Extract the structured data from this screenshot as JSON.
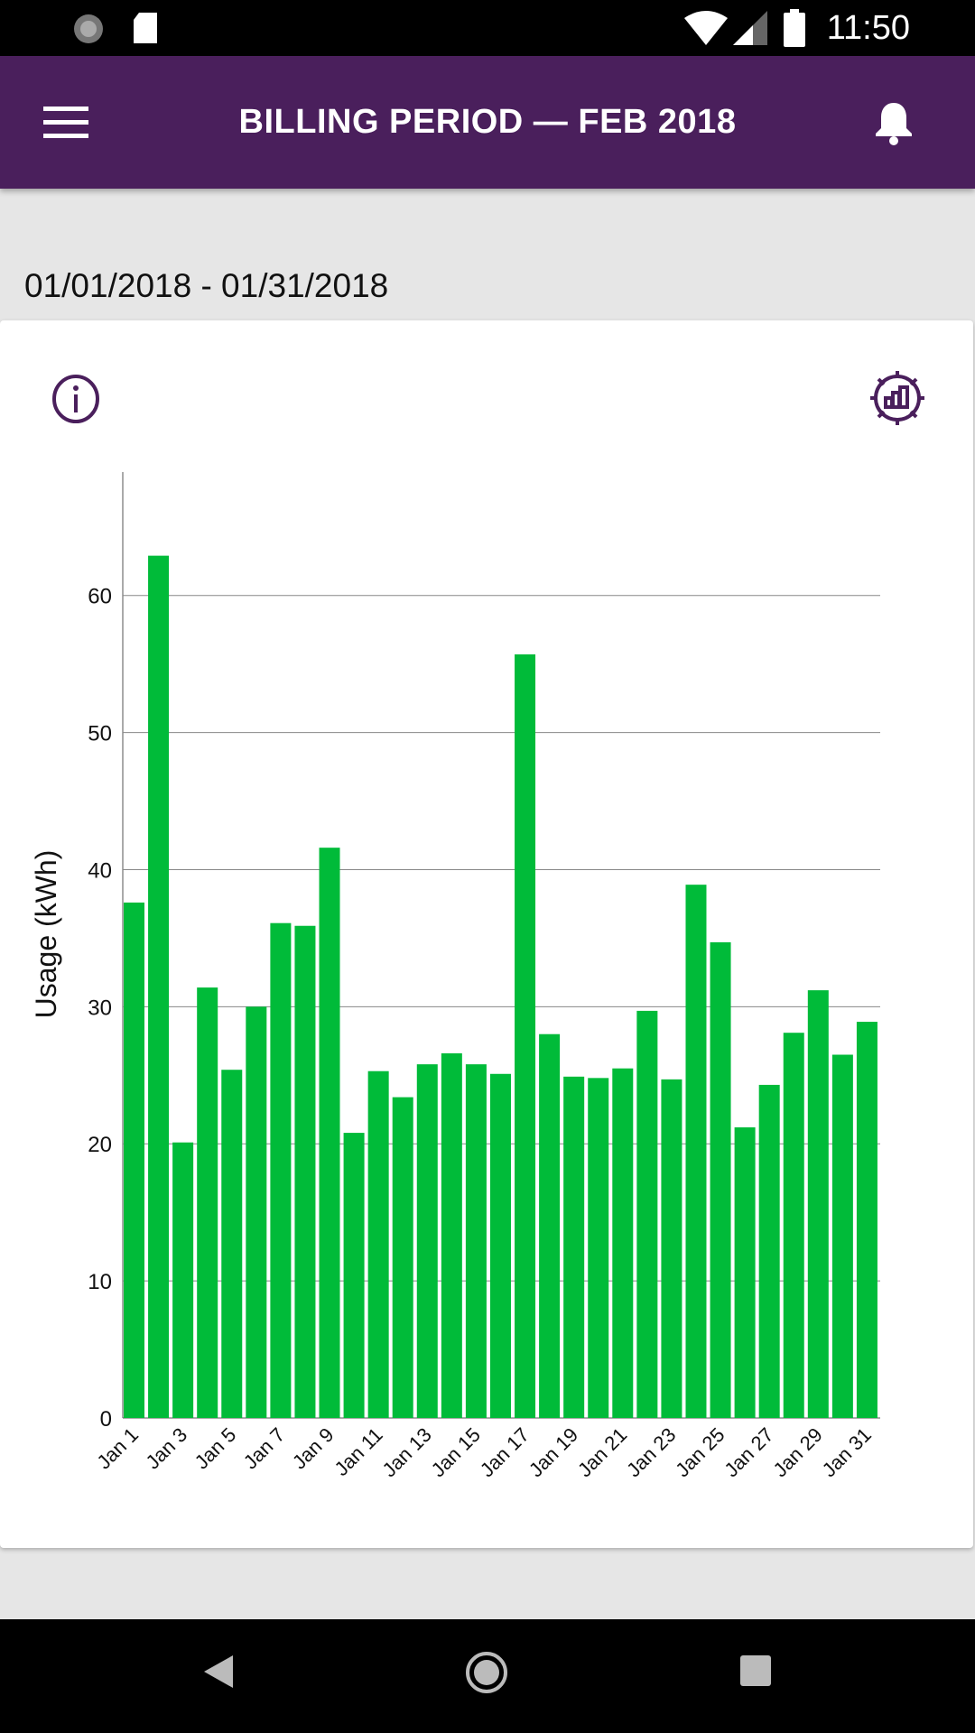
{
  "status_bar": {
    "time": "11:50"
  },
  "app_bar": {
    "title": "BILLING PERIOD  —  FEB 2018"
  },
  "date_range": "01/01/2018 - 01/31/2018",
  "colors": {
    "brand": "#4a1f5c",
    "bar": "#00bb39"
  },
  "chart_data": {
    "type": "bar",
    "title": "",
    "xlabel": "",
    "ylabel": "Usage (kWh)",
    "ylim": [
      0,
      69
    ],
    "yticks": [
      0,
      10,
      20,
      30,
      40,
      50,
      60
    ],
    "grid": true,
    "categories": [
      "Jan 1",
      "Jan 2",
      "Jan 3",
      "Jan 4",
      "Jan 5",
      "Jan 6",
      "Jan 7",
      "Jan 8",
      "Jan 9",
      "Jan 10",
      "Jan 11",
      "Jan 12",
      "Jan 13",
      "Jan 14",
      "Jan 15",
      "Jan 16",
      "Jan 17",
      "Jan 18",
      "Jan 19",
      "Jan 20",
      "Jan 21",
      "Jan 22",
      "Jan 23",
      "Jan 24",
      "Jan 25",
      "Jan 26",
      "Jan 27",
      "Jan 28",
      "Jan 29",
      "Jan 30",
      "Jan 31"
    ],
    "xtick_labels": [
      "Jan 1",
      "Jan 3",
      "Jan 5",
      "Jan 7",
      "Jan 9",
      "Jan 11",
      "Jan 13",
      "Jan 15",
      "Jan 17",
      "Jan 19",
      "Jan 21",
      "Jan 23",
      "Jan 25",
      "Jan 27",
      "Jan 29",
      "Jan 31"
    ],
    "values": [
      37.6,
      62.9,
      20.1,
      31.4,
      25.4,
      30.0,
      36.1,
      35.9,
      41.6,
      20.8,
      25.3,
      23.4,
      25.8,
      26.6,
      25.8,
      25.1,
      55.7,
      28.0,
      24.9,
      24.8,
      25.5,
      29.7,
      24.7,
      38.9,
      34.7,
      21.2,
      24.3,
      28.1,
      31.2,
      26.5,
      28.9
    ]
  }
}
